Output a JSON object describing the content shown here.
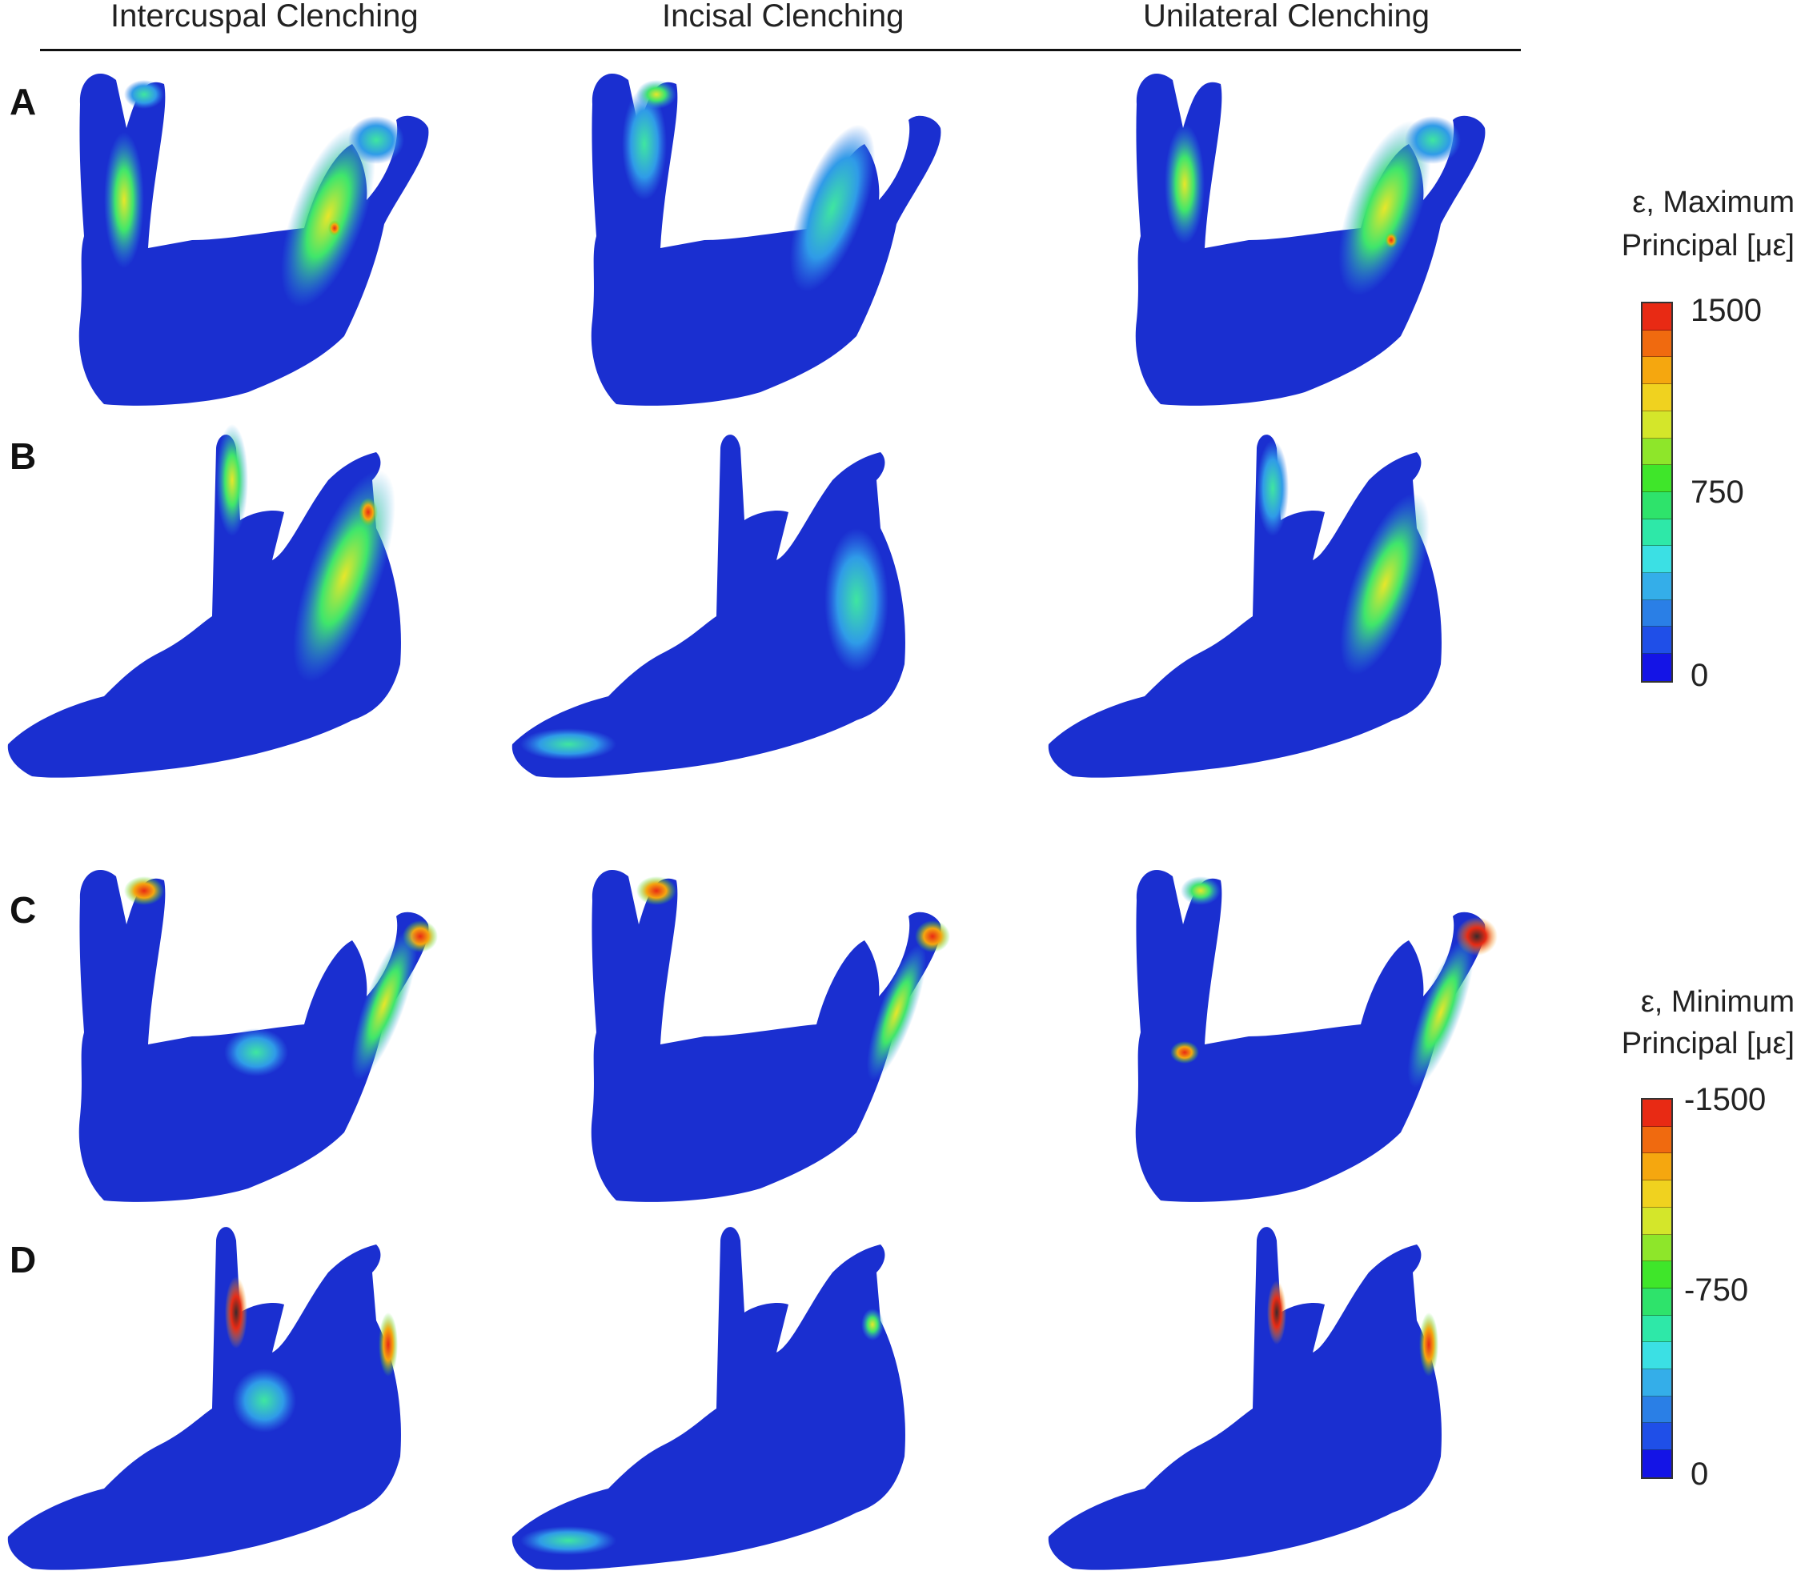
{
  "columns": [
    "Intercuspal Clenching",
    "Incisal Clenching",
    "Unilateral Clenching"
  ],
  "rows": [
    "A",
    "B",
    "C",
    "D"
  ],
  "colorbar_max": {
    "title_line1": "ε, Maximum",
    "title_line2": "Principal [με]",
    "ticks": [
      "1500",
      "750",
      "0"
    ]
  },
  "colorbar_min": {
    "title_line1": "ε, Minimum",
    "title_line2": "Principal [με]",
    "ticks": [
      "-1500",
      "-750",
      "0"
    ]
  },
  "colors": {
    "scale": [
      "#1414e6",
      "#1f4fe8",
      "#2a7fe6",
      "#34aee9",
      "#3be0e4",
      "#2ee8a8",
      "#2ee36b",
      "#3fe62a",
      "#8ee62a",
      "#d4e62a",
      "#f0d21f",
      "#f5a70f",
      "#f06a0f",
      "#e82a14"
    ],
    "bone_base": "#1a2fd0",
    "bone_mid": "#2f7be8",
    "bone_high": "#3fe6c0"
  }
}
